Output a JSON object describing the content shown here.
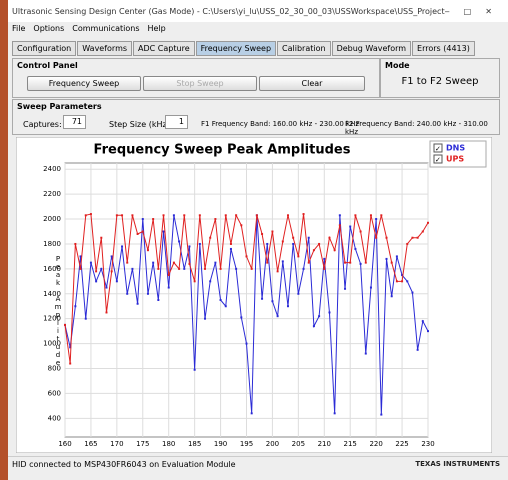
{
  "window": {
    "title": "Ultrasonic Sensing Design Center (Gas Mode) - C:\\Users\\yi_lu\\USS_02_30_00_03\\USSWorkspace\\USS_Project",
    "menu": [
      "File",
      "Options",
      "Communications",
      "Help"
    ],
    "tabs": [
      "Configuration",
      "Waveforms",
      "ADC Capture",
      "Frequency Sweep",
      "Calibration",
      "Debug Waveform",
      "Errors (4413)"
    ]
  },
  "control_panel": {
    "title": "Control Panel",
    "buttons": [
      "Frequency Sweep",
      "Stop Sweep",
      "Clear"
    ]
  },
  "mode": {
    "title": "Mode",
    "value": "F1 to F2 Sweep"
  },
  "sweep_parameters": {
    "title": "Sweep Parameters",
    "captures_label": "Captures:",
    "captures": "71",
    "step_label": "Step Size (kHz):",
    "step": "1",
    "f1_band": "F1 Frequency Band: 160.00 kHz - 230.00 kHz",
    "f2_band": "F2 Frequency Band: 240.00 kHz - 310.00 kHz"
  },
  "status": {
    "text": "HID connected to MSP430FR6043 on Evaluation Module",
    "logo": "TEXAS INSTRUMENTS"
  },
  "chart_data": {
    "type": "line",
    "title": "Frequency Sweep Peak Amplitudes",
    "y_label": "Peak Amplitude",
    "x": [
      160,
      161,
      162,
      163,
      164,
      165,
      166,
      167,
      168,
      169,
      170,
      171,
      172,
      173,
      174,
      175,
      176,
      177,
      178,
      179,
      180,
      181,
      182,
      183,
      184,
      185,
      186,
      187,
      188,
      189,
      190,
      191,
      192,
      193,
      194,
      195,
      196,
      197,
      198,
      199,
      200,
      201,
      202,
      203,
      204,
      205,
      206,
      207,
      208,
      209,
      210,
      211,
      212,
      213,
      214,
      215,
      216,
      217,
      218,
      219,
      220,
      221,
      222,
      223,
      224,
      225,
      226,
      227,
      228,
      229,
      230
    ],
    "series": [
      {
        "name": "DNS",
        "color": "#2b2bd6",
        "values": [
          1150,
          970,
          1300,
          1700,
          1200,
          1650,
          1500,
          1600,
          1450,
          1700,
          1500,
          1780,
          1400,
          1600,
          1320,
          2000,
          1400,
          1650,
          1350,
          1900,
          1450,
          2030,
          1820,
          1600,
          1780,
          790,
          1800,
          1200,
          1500,
          1650,
          1350,
          1300,
          1760,
          1600,
          1210,
          1000,
          440,
          2030,
          1360,
          1800,
          1340,
          1220,
          1660,
          1300,
          1800,
          1400,
          1600,
          1850,
          1140,
          1220,
          1680,
          1250,
          440,
          2030,
          1440,
          1940,
          1760,
          1640,
          920,
          1450,
          2000,
          430,
          1680,
          1380,
          1700,
          1550,
          1500,
          1410,
          950,
          1180,
          1100
        ]
      },
      {
        "name": "UPS",
        "color": "#e02020",
        "values": [
          1150,
          840,
          1800,
          1600,
          2030,
          2040,
          1580,
          1850,
          1250,
          1580,
          2030,
          2030,
          1650,
          2030,
          1880,
          1900,
          1750,
          2000,
          1600,
          2030,
          1550,
          1650,
          1600,
          2030,
          1640,
          1500,
          2030,
          1600,
          1850,
          2000,
          1600,
          2030,
          1800,
          2030,
          1950,
          1700,
          1600,
          2030,
          1880,
          1650,
          1900,
          1580,
          1820,
          2030,
          1850,
          1700,
          2040,
          1650,
          1750,
          1800,
          1600,
          1850,
          1750,
          1950,
          1650,
          1650,
          2030,
          1900,
          1650,
          2030,
          1850,
          2030,
          1850,
          1650,
          1500,
          1500,
          1800,
          1850,
          1850,
          1900,
          1970
        ]
      }
    ],
    "xlim": [
      160,
      230
    ],
    "xticks": [
      160,
      165,
      170,
      175,
      180,
      185,
      190,
      195,
      200,
      205,
      210,
      215,
      220,
      225,
      230
    ],
    "ylim": [
      250,
      2450
    ],
    "yticks": [
      400,
      600,
      800,
      1000,
      1200,
      1400,
      1600,
      1800,
      2000,
      2200,
      2400
    ],
    "grid": true
  }
}
